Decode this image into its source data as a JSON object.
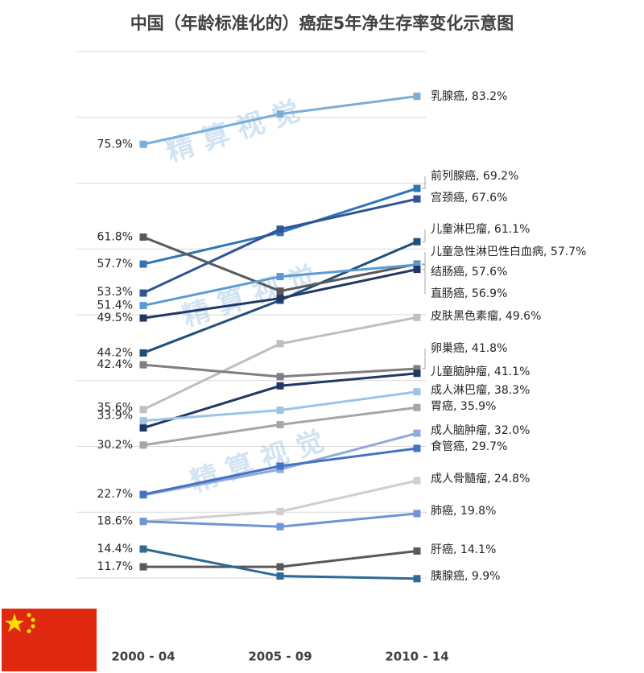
{
  "chart_data": {
    "type": "line",
    "title": "中国（年龄标准化的）癌症5年净生存率变化示意图",
    "watermark": "精 算 视 觉",
    "label_separator": ", ",
    "categories": [
      "2000 - 04",
      "2005 - 09",
      "2010 - 14"
    ],
    "ylim": [
      9,
      91
    ],
    "yticks": [
      10,
      20,
      30,
      40,
      50,
      60,
      70,
      80,
      90
    ],
    "tick_labels": false,
    "grid": true,
    "series": [
      {
        "name": "乳腺癌",
        "color": "#7aaed6",
        "values": [
          75.9,
          80.5,
          83.2
        ],
        "value_labels": [
          "75.9%",
          null,
          "83.2%"
        ]
      },
      {
        "name": "前列腺癌",
        "color": "#2e75b6",
        "values": [
          57.7,
          62.5,
          69.2
        ],
        "value_labels": [
          "57.7%",
          null,
          "69.2%"
        ]
      },
      {
        "name": "宫颈癌",
        "color": "#2f5597",
        "values": [
          53.3,
          63.0,
          67.6
        ],
        "value_labels": [
          "53.3%",
          null,
          "67.6%"
        ]
      },
      {
        "name": "儿童淋巴瘤",
        "color": "#1f4e79",
        "values": [
          44.2,
          52.2,
          61.1
        ],
        "value_labels": [
          "44.2%",
          null,
          "61.1%"
        ]
      },
      {
        "name": "儿童急性淋巴性白血病",
        "color": "#595959",
        "values": [
          61.8,
          53.6,
          57.7
        ],
        "value_labels": [
          "61.8%",
          null,
          "57.7%"
        ]
      },
      {
        "name": "结肠癌",
        "color": "#5b9bd5",
        "values": [
          51.4,
          55.8,
          57.6
        ],
        "value_labels": [
          "51.4%",
          null,
          "57.6%"
        ]
      },
      {
        "name": "直肠癌",
        "color": "#203864",
        "values": [
          49.5,
          52.5,
          56.9
        ],
        "value_labels": [
          "49.5%",
          null,
          "56.9%"
        ]
      },
      {
        "name": "皮肤黑色素瘤",
        "color": "#bfbfbf",
        "values": [
          35.6,
          45.6,
          49.6
        ],
        "value_labels": [
          "35.6%",
          null,
          "49.6%"
        ]
      },
      {
        "name": "卵巢癌",
        "color": "#7f7f7f",
        "values": [
          42.4,
          40.6,
          41.8
        ],
        "value_labels": [
          "42.4%",
          null,
          "41.8%"
        ]
      },
      {
        "name": "儿童脑肿瘤",
        "color": "#1f3864",
        "values": [
          32.8,
          39.2,
          41.1
        ],
        "value_labels": [
          null,
          null,
          "41.1%"
        ]
      },
      {
        "name": "成人淋巴瘤",
        "color": "#9dc3e6",
        "values": [
          33.9,
          35.5,
          38.3
        ],
        "value_labels": [
          "33.9%",
          null,
          "38.3%"
        ]
      },
      {
        "name": "胃癌",
        "color": "#a6a6a6",
        "values": [
          30.2,
          33.3,
          35.9
        ],
        "value_labels": [
          "30.2%",
          null,
          "35.9%"
        ]
      },
      {
        "name": "成人脑肿瘤",
        "color": "#8faadc",
        "values": [
          22.6,
          26.5,
          32.0
        ],
        "value_labels": [
          null,
          null,
          "32.0%"
        ]
      },
      {
        "name": "食管癌",
        "color": "#4472c4",
        "values": [
          22.7,
          27.0,
          29.7
        ],
        "value_labels": [
          "22.7%",
          null,
          "29.7%"
        ]
      },
      {
        "name": "成人骨髓瘤",
        "color": "#d0cece",
        "values": [
          18.6,
          20.1,
          24.8
        ],
        "value_labels": [
          "18.6%",
          null,
          "24.8%"
        ]
      },
      {
        "name": "肺癌",
        "color": "#7094d8",
        "values": [
          18.6,
          17.8,
          19.8
        ],
        "value_labels": [
          null,
          null,
          "19.8%"
        ]
      },
      {
        "name": "肝癌",
        "color": "#595959",
        "values": [
          11.7,
          11.7,
          14.1
        ],
        "value_labels": [
          "11.7%",
          null,
          "14.1%"
        ]
      },
      {
        "name": "胰腺癌",
        "color": "#2e6a94",
        "values": [
          14.4,
          10.3,
          9.9
        ],
        "value_labels": [
          "14.4%",
          null,
          "9.9%"
        ]
      }
    ]
  }
}
